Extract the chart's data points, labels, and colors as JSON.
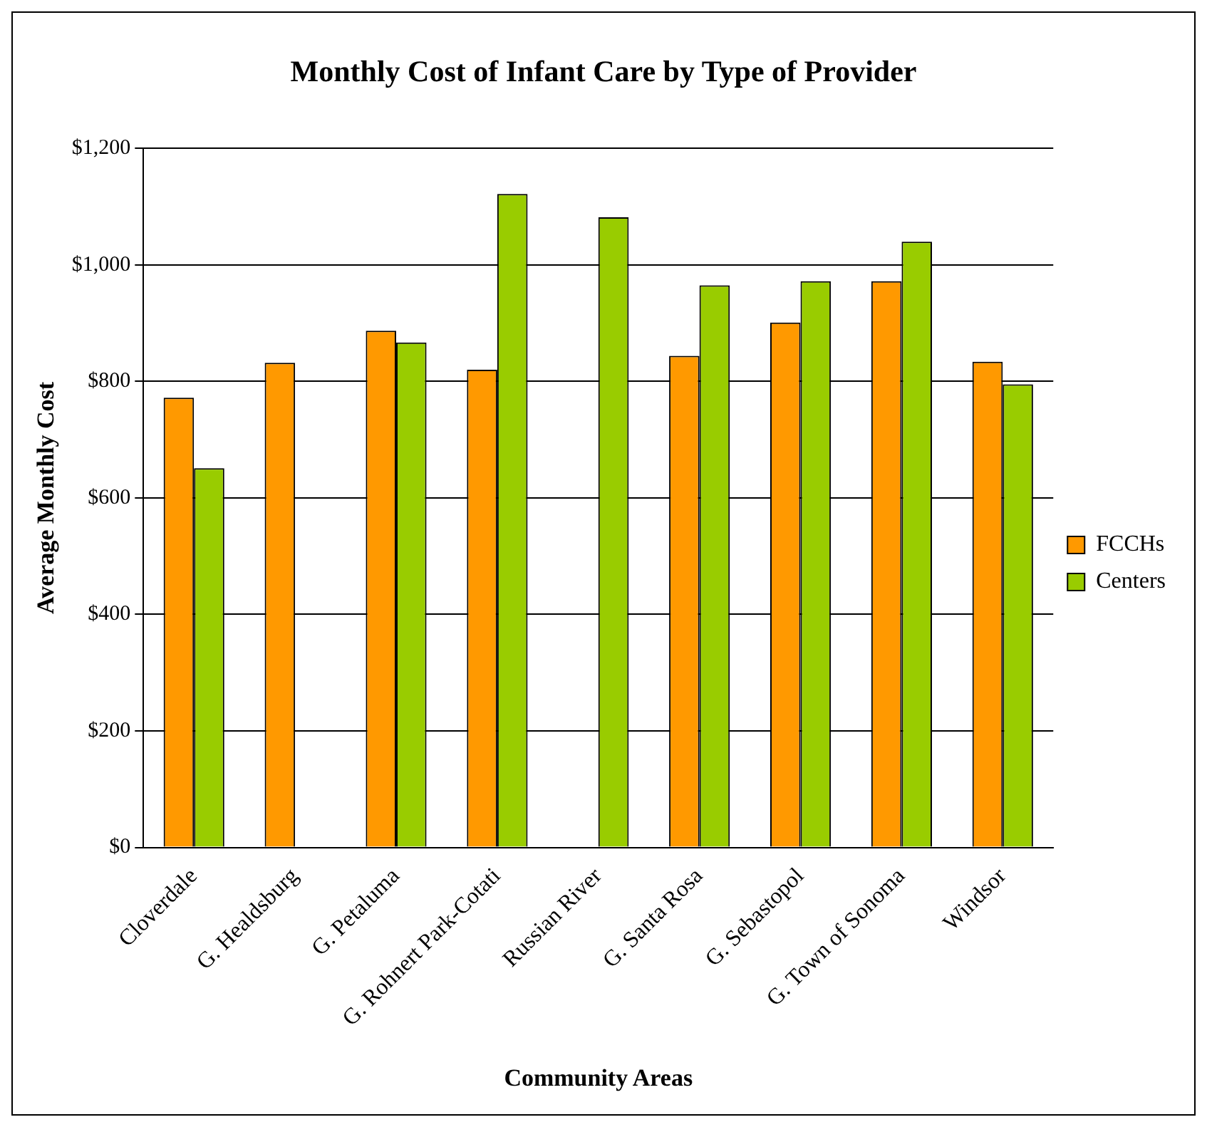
{
  "chart_data": {
    "type": "bar",
    "title": "Monthly Cost of Infant Care by Type of Provider",
    "xlabel": "Community Areas",
    "ylabel": "Average Monthly Cost",
    "categories": [
      "Cloverdale",
      "G. Healdsburg",
      "G. Petaluma",
      "G. Rohnert Park-Cotati",
      "Russian River",
      "G. Santa Rosa",
      "G. Sebastopol",
      "G. Town of Sonoma",
      "Windsor"
    ],
    "series": [
      {
        "name": "FCCHs",
        "color": "#ff9900",
        "values": [
          772,
          832,
          887,
          820,
          null,
          844,
          901,
          972,
          834
        ]
      },
      {
        "name": "Centers",
        "color": "#99cc00",
        "values": [
          651,
          null,
          867,
          1122,
          1082,
          965,
          972,
          1040,
          795
        ]
      }
    ],
    "ylim": [
      0,
      1200
    ],
    "yticks": [
      {
        "value": 0,
        "label": "$0"
      },
      {
        "value": 200,
        "label": "$200"
      },
      {
        "value": 400,
        "label": "$400"
      },
      {
        "value": 600,
        "label": "$600"
      },
      {
        "value": 800,
        "label": "$800"
      },
      {
        "value": 1000,
        "label": "$1,000"
      },
      {
        "value": 1200,
        "label": "$1,200"
      }
    ],
    "grid": "y",
    "legend": "right"
  }
}
